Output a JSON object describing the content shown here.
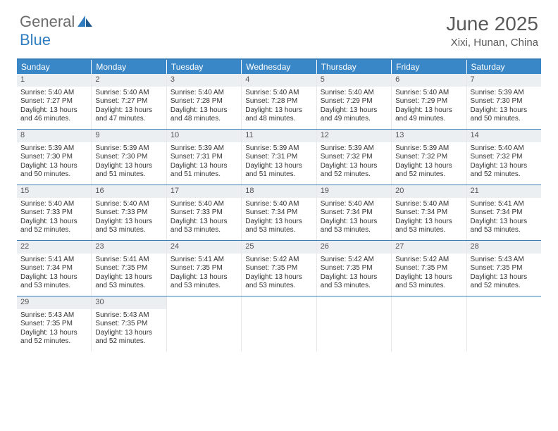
{
  "logo": {
    "text1": "General",
    "text2": "Blue"
  },
  "title": "June 2025",
  "location": "Xixi, Hunan, China",
  "colors": {
    "header_bg": "#3a87c7",
    "header_text": "#ffffff",
    "rule": "#3a7fb8",
    "daynum_bg": "#eceff1",
    "body_text": "#333333",
    "title_text": "#5a5a5a",
    "logo_gray": "#6b6b6b",
    "logo_blue": "#2f7cc0"
  },
  "day_headers": [
    "Sunday",
    "Monday",
    "Tuesday",
    "Wednesday",
    "Thursday",
    "Friday",
    "Saturday"
  ],
  "weeks": [
    [
      {
        "n": "1",
        "sr": "5:40 AM",
        "ss": "7:27 PM",
        "dl": "13 hours and 46 minutes."
      },
      {
        "n": "2",
        "sr": "5:40 AM",
        "ss": "7:27 PM",
        "dl": "13 hours and 47 minutes."
      },
      {
        "n": "3",
        "sr": "5:40 AM",
        "ss": "7:28 PM",
        "dl": "13 hours and 48 minutes."
      },
      {
        "n": "4",
        "sr": "5:40 AM",
        "ss": "7:28 PM",
        "dl": "13 hours and 48 minutes."
      },
      {
        "n": "5",
        "sr": "5:40 AM",
        "ss": "7:29 PM",
        "dl": "13 hours and 49 minutes."
      },
      {
        "n": "6",
        "sr": "5:40 AM",
        "ss": "7:29 PM",
        "dl": "13 hours and 49 minutes."
      },
      {
        "n": "7",
        "sr": "5:39 AM",
        "ss": "7:30 PM",
        "dl": "13 hours and 50 minutes."
      }
    ],
    [
      {
        "n": "8",
        "sr": "5:39 AM",
        "ss": "7:30 PM",
        "dl": "13 hours and 50 minutes."
      },
      {
        "n": "9",
        "sr": "5:39 AM",
        "ss": "7:30 PM",
        "dl": "13 hours and 51 minutes."
      },
      {
        "n": "10",
        "sr": "5:39 AM",
        "ss": "7:31 PM",
        "dl": "13 hours and 51 minutes."
      },
      {
        "n": "11",
        "sr": "5:39 AM",
        "ss": "7:31 PM",
        "dl": "13 hours and 51 minutes."
      },
      {
        "n": "12",
        "sr": "5:39 AM",
        "ss": "7:32 PM",
        "dl": "13 hours and 52 minutes."
      },
      {
        "n": "13",
        "sr": "5:39 AM",
        "ss": "7:32 PM",
        "dl": "13 hours and 52 minutes."
      },
      {
        "n": "14",
        "sr": "5:40 AM",
        "ss": "7:32 PM",
        "dl": "13 hours and 52 minutes."
      }
    ],
    [
      {
        "n": "15",
        "sr": "5:40 AM",
        "ss": "7:33 PM",
        "dl": "13 hours and 52 minutes."
      },
      {
        "n": "16",
        "sr": "5:40 AM",
        "ss": "7:33 PM",
        "dl": "13 hours and 53 minutes."
      },
      {
        "n": "17",
        "sr": "5:40 AM",
        "ss": "7:33 PM",
        "dl": "13 hours and 53 minutes."
      },
      {
        "n": "18",
        "sr": "5:40 AM",
        "ss": "7:34 PM",
        "dl": "13 hours and 53 minutes."
      },
      {
        "n": "19",
        "sr": "5:40 AM",
        "ss": "7:34 PM",
        "dl": "13 hours and 53 minutes."
      },
      {
        "n": "20",
        "sr": "5:40 AM",
        "ss": "7:34 PM",
        "dl": "13 hours and 53 minutes."
      },
      {
        "n": "21",
        "sr": "5:41 AM",
        "ss": "7:34 PM",
        "dl": "13 hours and 53 minutes."
      }
    ],
    [
      {
        "n": "22",
        "sr": "5:41 AM",
        "ss": "7:34 PM",
        "dl": "13 hours and 53 minutes."
      },
      {
        "n": "23",
        "sr": "5:41 AM",
        "ss": "7:35 PM",
        "dl": "13 hours and 53 minutes."
      },
      {
        "n": "24",
        "sr": "5:41 AM",
        "ss": "7:35 PM",
        "dl": "13 hours and 53 minutes."
      },
      {
        "n": "25",
        "sr": "5:42 AM",
        "ss": "7:35 PM",
        "dl": "13 hours and 53 minutes."
      },
      {
        "n": "26",
        "sr": "5:42 AM",
        "ss": "7:35 PM",
        "dl": "13 hours and 53 minutes."
      },
      {
        "n": "27",
        "sr": "5:42 AM",
        "ss": "7:35 PM",
        "dl": "13 hours and 53 minutes."
      },
      {
        "n": "28",
        "sr": "5:43 AM",
        "ss": "7:35 PM",
        "dl": "13 hours and 52 minutes."
      }
    ],
    [
      {
        "n": "29",
        "sr": "5:43 AM",
        "ss": "7:35 PM",
        "dl": "13 hours and 52 minutes."
      },
      {
        "n": "30",
        "sr": "5:43 AM",
        "ss": "7:35 PM",
        "dl": "13 hours and 52 minutes."
      },
      null,
      null,
      null,
      null,
      null
    ]
  ],
  "labels": {
    "sunrise": "Sunrise: ",
    "sunset": "Sunset: ",
    "daylight": "Daylight: "
  }
}
